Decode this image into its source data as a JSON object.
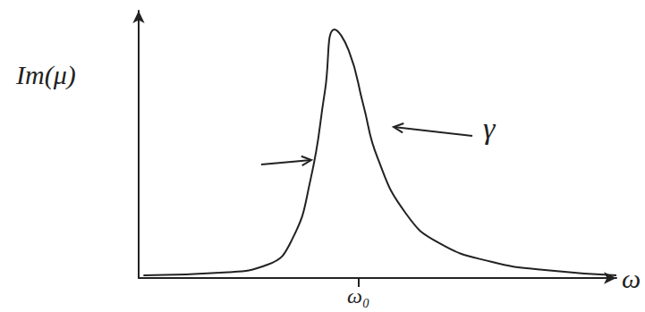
{
  "chart_data": {
    "type": "line",
    "ylabel": "Im(μ)",
    "xlabel": "ω",
    "annotations": [
      "γ"
    ],
    "x": [
      0.1,
      1.7,
      2.7,
      3.2,
      3.6,
      3.9,
      4.1,
      4.4,
      4.7,
      5.0,
      5.6,
      6.3,
      7.4,
      8.5,
      10
    ],
    "values": [
      0.1,
      0.2,
      0.5,
      1.4,
      3.7,
      7.0,
      9.3,
      8.5,
      6.5,
      4.5,
      2.4,
      1.3,
      0.6,
      0.3,
      0.1
    ],
    "color": "#222222",
    "xlim": [
      0,
      10
    ],
    "ylim": [
      0,
      10
    ],
    "xticks": [
      {
        "value": 4.6,
        "label": "ω₀"
      }
    ],
    "grid": false,
    "tick_labels": "x"
  }
}
